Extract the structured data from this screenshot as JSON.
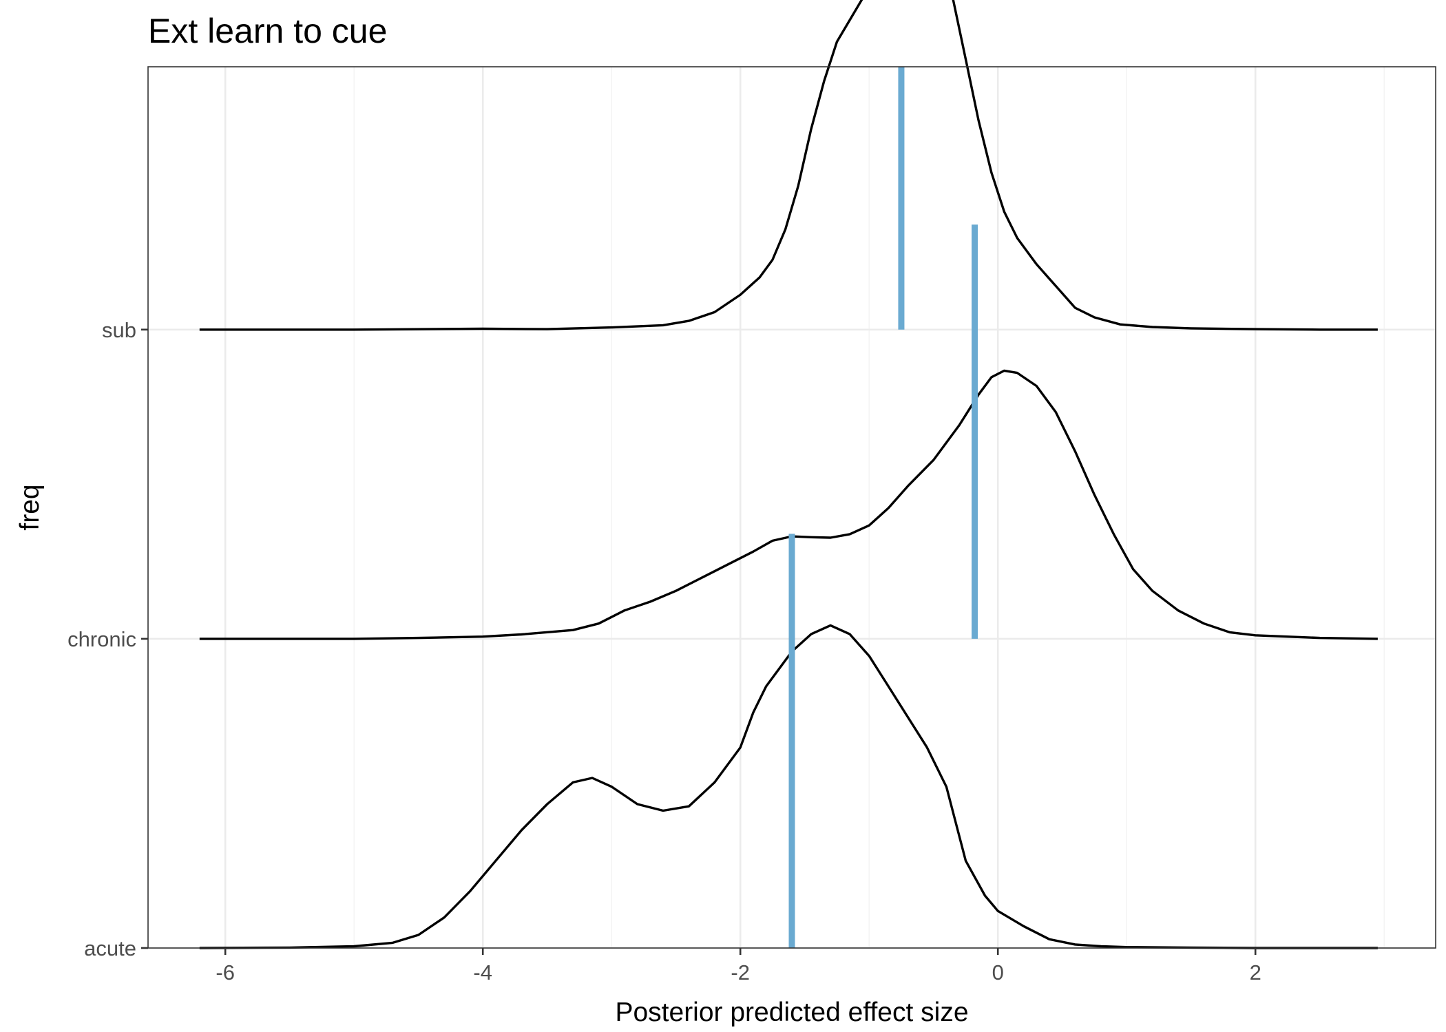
{
  "chart_data": {
    "type": "ridgeline",
    "title": "Ext learn to cue",
    "xlabel": "Posterior predicted effect size",
    "ylabel": "freq",
    "xlim": [
      -6.6,
      3.4
    ],
    "x_ticks": [
      -6,
      -4,
      -2,
      0,
      2
    ],
    "x_tick_labels": [
      "-6",
      "-4",
      "-2",
      "0",
      "2"
    ],
    "categories": [
      "acute",
      "chronic",
      "sub"
    ],
    "grid": true,
    "median_color": "#6aaad1",
    "line_color": "#000000",
    "series": [
      {
        "name": "acute",
        "median": -1.6,
        "density": [
          [
            -6.2,
            0.0
          ],
          [
            -5.5,
            0.001
          ],
          [
            -5.0,
            0.004
          ],
          [
            -4.7,
            0.012
          ],
          [
            -4.5,
            0.03
          ],
          [
            -4.3,
            0.07
          ],
          [
            -4.1,
            0.13
          ],
          [
            -3.9,
            0.2
          ],
          [
            -3.7,
            0.27
          ],
          [
            -3.5,
            0.33
          ],
          [
            -3.3,
            0.38
          ],
          [
            -3.15,
            0.39
          ],
          [
            -3.0,
            0.37
          ],
          [
            -2.8,
            0.33
          ],
          [
            -2.6,
            0.315
          ],
          [
            -2.4,
            0.325
          ],
          [
            -2.2,
            0.38
          ],
          [
            -2.0,
            0.46
          ],
          [
            -1.9,
            0.54
          ],
          [
            -1.8,
            0.6
          ],
          [
            -1.6,
            0.68
          ],
          [
            -1.45,
            0.72
          ],
          [
            -1.3,
            0.74
          ],
          [
            -1.15,
            0.72
          ],
          [
            -1.0,
            0.67
          ],
          [
            -0.85,
            0.6
          ],
          [
            -0.7,
            0.53
          ],
          [
            -0.55,
            0.46
          ],
          [
            -0.4,
            0.37
          ],
          [
            -0.25,
            0.2
          ],
          [
            -0.1,
            0.12
          ],
          [
            0.0,
            0.085
          ],
          [
            0.2,
            0.05
          ],
          [
            0.4,
            0.02
          ],
          [
            0.6,
            0.008
          ],
          [
            0.8,
            0.004
          ],
          [
            1.0,
            0.002
          ],
          [
            1.5,
            0.001
          ],
          [
            2.0,
            0.0
          ],
          [
            2.95,
            0.0
          ]
        ]
      },
      {
        "name": "chronic",
        "median": -0.18,
        "density": [
          [
            -6.2,
            0.0
          ],
          [
            -5.0,
            0.0
          ],
          [
            -4.5,
            0.002
          ],
          [
            -4.0,
            0.005
          ],
          [
            -3.7,
            0.01
          ],
          [
            -3.3,
            0.02
          ],
          [
            -3.1,
            0.035
          ],
          [
            -2.9,
            0.065
          ],
          [
            -2.7,
            0.085
          ],
          [
            -2.5,
            0.11
          ],
          [
            -2.3,
            0.14
          ],
          [
            -2.1,
            0.17
          ],
          [
            -1.9,
            0.2
          ],
          [
            -1.75,
            0.225
          ],
          [
            -1.6,
            0.235
          ],
          [
            -1.45,
            0.233
          ],
          [
            -1.3,
            0.232
          ],
          [
            -1.15,
            0.24
          ],
          [
            -1.0,
            0.26
          ],
          [
            -0.85,
            0.3
          ],
          [
            -0.7,
            0.35
          ],
          [
            -0.5,
            0.41
          ],
          [
            -0.3,
            0.49
          ],
          [
            -0.15,
            0.56
          ],
          [
            -0.05,
            0.6
          ],
          [
            0.05,
            0.615
          ],
          [
            0.15,
            0.61
          ],
          [
            0.3,
            0.58
          ],
          [
            0.45,
            0.52
          ],
          [
            0.6,
            0.43
          ],
          [
            0.75,
            0.33
          ],
          [
            0.9,
            0.24
          ],
          [
            1.05,
            0.16
          ],
          [
            1.2,
            0.11
          ],
          [
            1.4,
            0.065
          ],
          [
            1.6,
            0.035
          ],
          [
            1.8,
            0.015
          ],
          [
            2.0,
            0.008
          ],
          [
            2.5,
            0.002
          ],
          [
            2.95,
            0.0
          ]
        ]
      },
      {
        "name": "sub",
        "median": -0.75,
        "density": [
          [
            -6.2,
            0.0
          ],
          [
            -5.0,
            0.0
          ],
          [
            -4.0,
            0.002
          ],
          [
            -3.5,
            0.001
          ],
          [
            -3.0,
            0.005
          ],
          [
            -2.6,
            0.01
          ],
          [
            -2.4,
            0.02
          ],
          [
            -2.2,
            0.04
          ],
          [
            -2.0,
            0.08
          ],
          [
            -1.85,
            0.12
          ],
          [
            -1.75,
            0.16
          ],
          [
            -1.65,
            0.23
          ],
          [
            -1.55,
            0.33
          ],
          [
            -1.45,
            0.46
          ],
          [
            -1.35,
            0.57
          ],
          [
            -1.25,
            0.66
          ],
          [
            -1.15,
            0.71
          ],
          [
            -1.05,
            0.76
          ],
          [
            -0.95,
            0.83
          ],
          [
            -0.85,
            0.9
          ],
          [
            -0.75,
            0.94
          ],
          [
            -0.65,
            0.935
          ],
          [
            -0.55,
            0.89
          ],
          [
            -0.45,
            0.84
          ],
          [
            -0.35,
            0.76
          ],
          [
            -0.25,
            0.62
          ],
          [
            -0.15,
            0.48
          ],
          [
            -0.05,
            0.36
          ],
          [
            0.05,
            0.27
          ],
          [
            0.15,
            0.21
          ],
          [
            0.3,
            0.15
          ],
          [
            0.45,
            0.1
          ],
          [
            0.6,
            0.05
          ],
          [
            0.75,
            0.028
          ],
          [
            0.95,
            0.012
          ],
          [
            1.2,
            0.006
          ],
          [
            1.5,
            0.003
          ],
          [
            2.0,
            0.001
          ],
          [
            2.5,
            0.0
          ],
          [
            2.95,
            0.0
          ]
        ]
      }
    ]
  }
}
